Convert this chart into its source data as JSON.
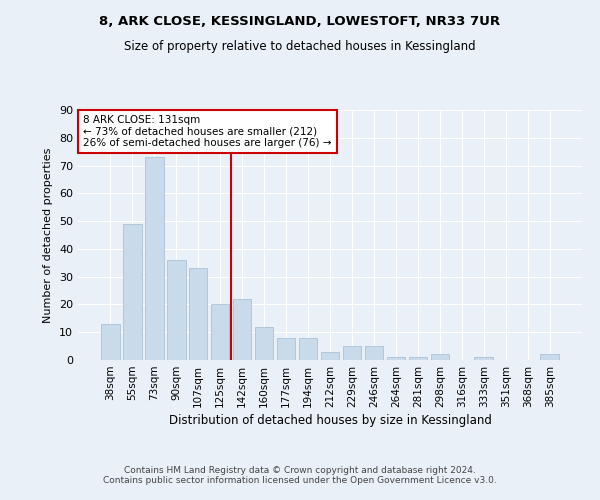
{
  "title1": "8, ARK CLOSE, KESSINGLAND, LOWESTOFT, NR33 7UR",
  "title2": "Size of property relative to detached houses in Kessingland",
  "xlabel": "Distribution of detached houses by size in Kessingland",
  "ylabel": "Number of detached properties",
  "categories": [
    "38sqm",
    "55sqm",
    "73sqm",
    "90sqm",
    "107sqm",
    "125sqm",
    "142sqm",
    "160sqm",
    "177sqm",
    "194sqm",
    "212sqm",
    "229sqm",
    "246sqm",
    "264sqm",
    "281sqm",
    "298sqm",
    "316sqm",
    "333sqm",
    "351sqm",
    "368sqm",
    "385sqm"
  ],
  "values": [
    13,
    49,
    73,
    36,
    33,
    20,
    22,
    12,
    8,
    8,
    3,
    5,
    5,
    1,
    1,
    2,
    0,
    1,
    0,
    0,
    2
  ],
  "bar_color": "#c9daea",
  "bar_edge_color": "#a0bcd4",
  "vline_color": "#cc0000",
  "annotation_text": "8 ARK CLOSE: 131sqm\n← 73% of detached houses are smaller (212)\n26% of semi-detached houses are larger (76) →",
  "annotation_box_color": "#ffffff",
  "annotation_box_edge_color": "#cc0000",
  "ylim": [
    0,
    90
  ],
  "yticks": [
    0,
    10,
    20,
    30,
    40,
    50,
    60,
    70,
    80,
    90
  ],
  "background_color": "#eaf0f7",
  "grid_color": "#ffffff",
  "footer_text": "Contains HM Land Registry data © Crown copyright and database right 2024.\nContains public sector information licensed under the Open Government Licence v3.0."
}
